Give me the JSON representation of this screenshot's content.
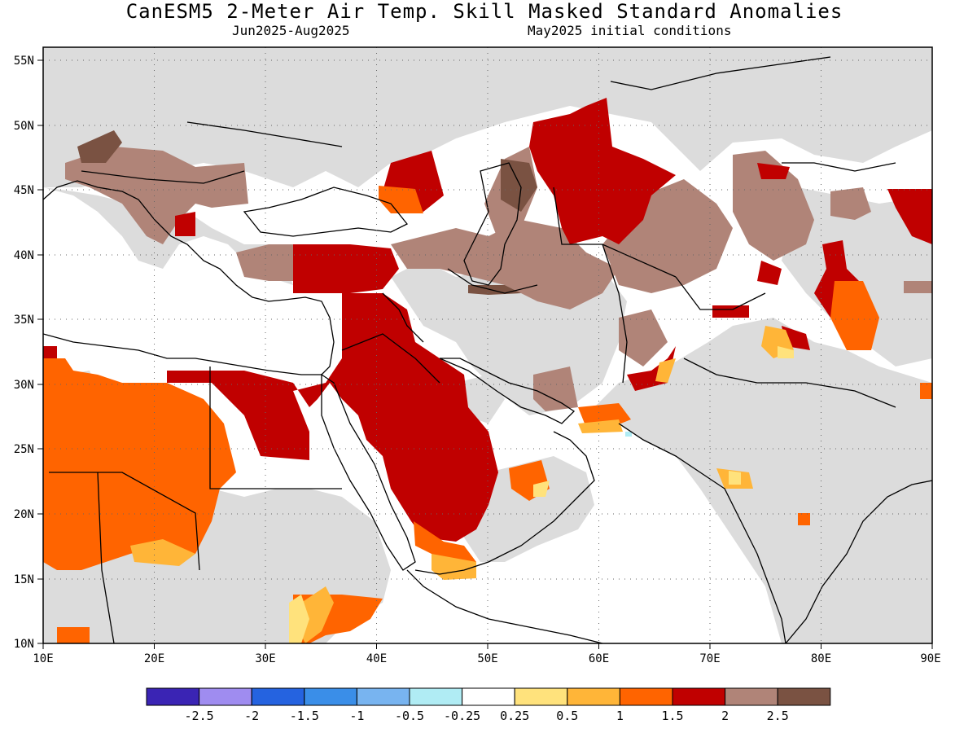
{
  "title": "CanESM5 2-Meter Air Temp. Skill Masked Standard Anomalies",
  "subtitle_left": "Jun2025-Aug2025",
  "subtitle_right": "May2025 initial conditions",
  "axes": {
    "lon_ticks": [
      "10E",
      "20E",
      "30E",
      "40E",
      "50E",
      "60E",
      "70E",
      "80E",
      "90E"
    ],
    "lat_ticks": [
      "55N",
      "50N",
      "45N",
      "40N",
      "35N",
      "30N",
      "25N",
      "20N",
      "15N",
      "10N"
    ],
    "lon_range": [
      10,
      90
    ],
    "lat_range": [
      10,
      56
    ],
    "grid": "dotted"
  },
  "colorbar": {
    "labels": [
      "-2.5",
      "-2",
      "-1.5",
      "-1",
      "-0.5",
      "-0.25",
      "0.25",
      "0.5",
      "1",
      "1.5",
      "2",
      "2.5"
    ],
    "colors": [
      "#3a24b4",
      "#9f8cf0",
      "#2563e0",
      "#3a8ee8",
      "#78b4f0",
      "#b0ecf4",
      "#ffffff",
      "#ffe27c",
      "#ffb538",
      "#ff6400",
      "#c00000",
      "#b08478",
      "#7a5242"
    ]
  },
  "colors": {
    "masked": "#dcdcdc",
    "ocean": "#ffffff",
    "c_0_5": "#ffe27c",
    "c_1": "#ffb538",
    "c_1_5": "#ff6400",
    "c_2": "#c00000",
    "c_2_5": "#b08478",
    "c_3": "#7a5242"
  }
}
